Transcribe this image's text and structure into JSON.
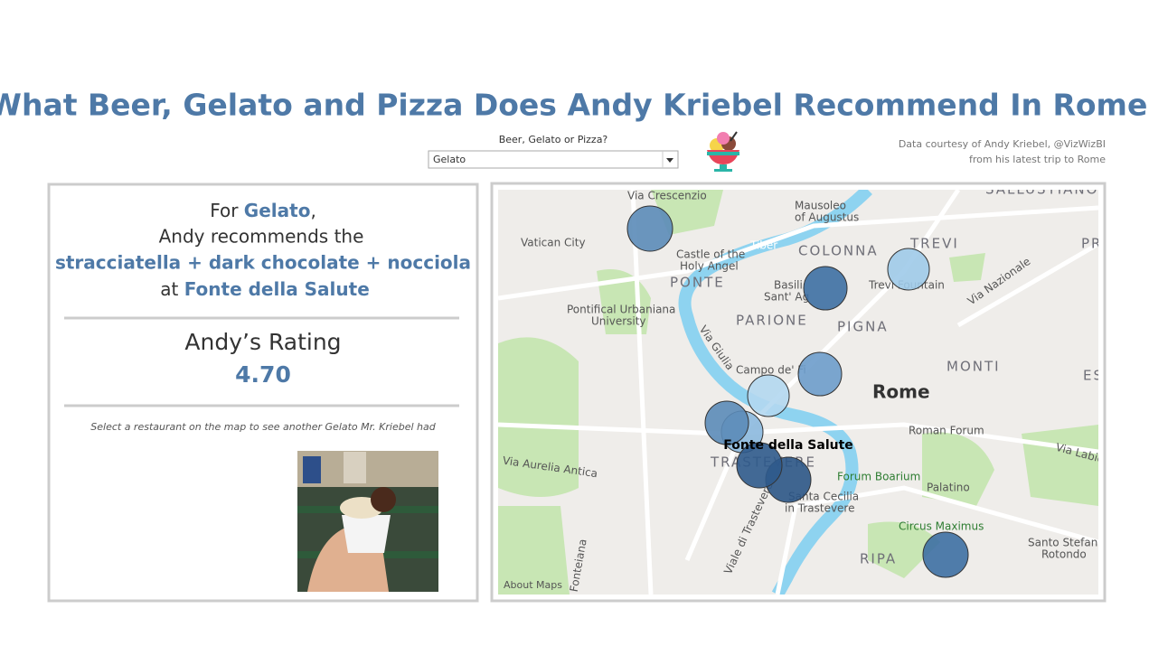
{
  "header": {
    "title": "What Beer, Gelato and Pizza Does Andy Kriebel Recommend In Rome?",
    "filter_label": "Beer, Gelato or Pizza?",
    "filter_value": "Gelato",
    "credit_line1": "Data courtesy of Andy Kriebel, @VizWizBI",
    "credit_line2": "from his latest trip to Rome"
  },
  "recommendation": {
    "for_prefix": "For",
    "category": "Gelato",
    "comma": ",",
    "line2": "Andy recommends the",
    "flavor": "stracciatella + dark chocolate + nocciola",
    "at": "at",
    "place": "Fonte della Salute",
    "rating_label": "Andy’s Rating",
    "rating": "4.70",
    "hint": "Select a restaurant on the map to see another Gelato Mr. Kriebel had"
  },
  "map": {
    "selected_label": "Fonte della Salute",
    "attribution": "About Maps",
    "labels": [
      "Via Crescenzio",
      "Mausoleo",
      "of Augustus",
      "SALLUSTIANO",
      "Vatican City",
      "Castle of the",
      "Holy Angel",
      "COLONNA",
      "TREVI",
      "Tiber",
      "Basili",
      "Sant' Ag",
      "PONTE",
      "Trevi Fountain",
      "Via Nazionale",
      "Pontifical Urbaniana",
      "University",
      "PARIONE",
      "PIGNA",
      "Via Giulia",
      "MONTI",
      "Campo de' Fi",
      "Rome",
      "Roman Forum",
      "Via Labic",
      "Via Aurelia Antica",
      "TRASTEVERE",
      "Forum Boarium",
      "Santa Cecilia",
      "in Trastevere",
      "Palatino",
      "Circus Maximus",
      "Santo Stefano",
      "Rotondo",
      "RIPA",
      "Viale di Trastevere",
      "Fonteiana",
      "PR",
      "ES"
    ]
  }
}
